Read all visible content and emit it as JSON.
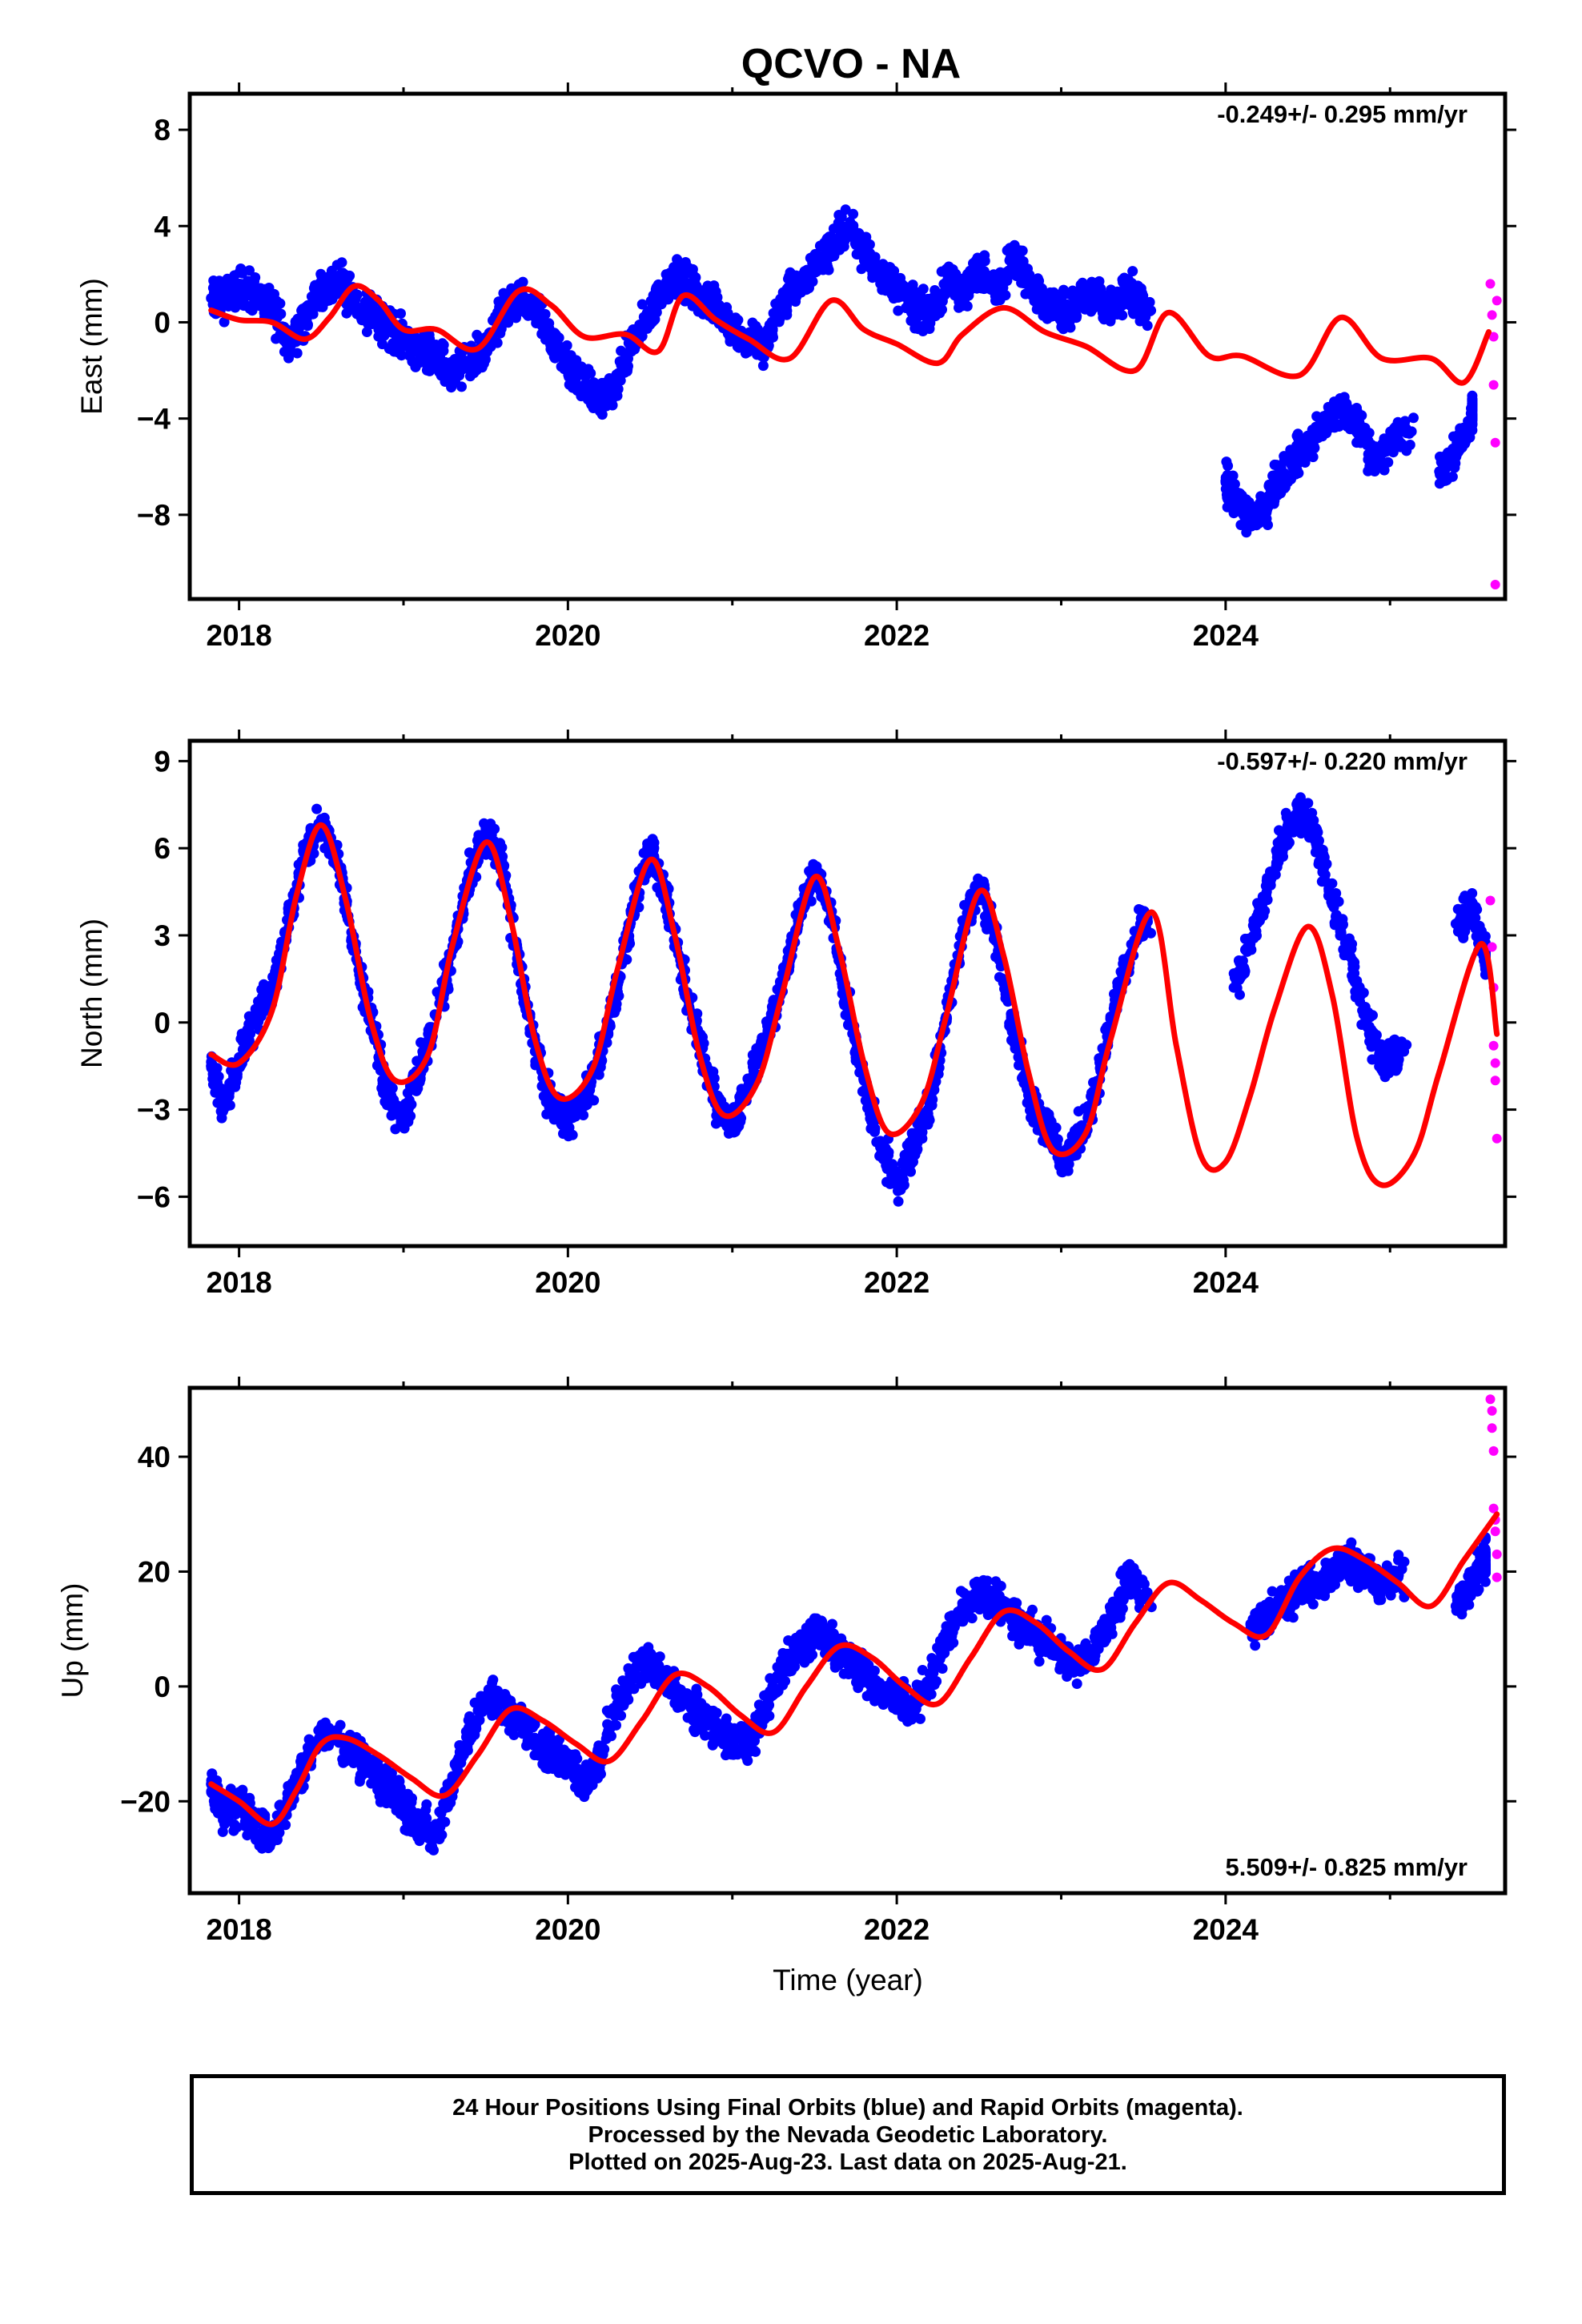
{
  "title": "QCVO - NA",
  "colors": {
    "final": "#0000ff",
    "rapid": "#ff00ff",
    "model": "#ff0000",
    "axis": "#000000"
  },
  "footer": {
    "line1": "24 Hour Positions Using Final Orbits (blue) and Rapid Orbits (magenta).",
    "line2": "Processed by the Nevada Geodetic Laboratory.",
    "line3": "Plotted on 2025-Aug-23. Last data on 2025-Aug-21."
  },
  "chart_data": [
    {
      "type": "scatter",
      "component": "east",
      "ylabel": "East (mm)",
      "xlabel": "",
      "rate_label": "-0.249+/- 0.295 mm/yr",
      "rate_position": "top-right",
      "xlim": [
        2017.7,
        2025.7
      ],
      "ylim": [
        -11.5,
        9.5
      ],
      "xticks": [
        2018,
        2020,
        2022,
        2024
      ],
      "xtick_labels": [
        "2018",
        "2020",
        "2022",
        "2024"
      ],
      "yticks": [
        8,
        4,
        0,
        -4,
        -8
      ],
      "ytick_labels": [
        "8",
        "4",
        "0",
        "−4",
        "−8"
      ],
      "grid": false,
      "model_curve": {
        "x": [
          2017.83,
          2018.0,
          2018.2,
          2018.4,
          2018.55,
          2018.7,
          2018.85,
          2019.0,
          2019.2,
          2019.45,
          2019.7,
          2019.9,
          2020.1,
          2020.35,
          2020.55,
          2020.7,
          2020.9,
          2021.1,
          2021.35,
          2021.6,
          2021.8,
          2022.0,
          2022.25,
          2022.4,
          2022.65,
          2022.9,
          2023.15,
          2023.45,
          2023.65,
          2023.9,
          2024.1,
          2024.45,
          2024.7,
          2024.95,
          2025.25,
          2025.45,
          2025.6
        ],
        "y": [
          0.5,
          0.1,
          0.0,
          -0.7,
          0.2,
          1.5,
          0.9,
          -0.3,
          -0.3,
          -1.1,
          1.3,
          0.7,
          -0.6,
          -0.5,
          -1.2,
          1.1,
          0.1,
          -0.7,
          -1.5,
          0.9,
          -0.3,
          -0.9,
          -1.7,
          -0.5,
          0.6,
          -0.4,
          -1.0,
          -2.0,
          0.4,
          -1.4,
          -1.4,
          -2.2,
          0.2,
          -1.5,
          -1.5,
          -2.5,
          -0.4
        ]
      },
      "final_orbits": {
        "x": [
          2017.83,
          2017.9,
          2018.0,
          2018.1,
          2018.2,
          2018.3,
          2018.4,
          2018.5,
          2018.6,
          2018.7,
          2018.8,
          2018.9,
          2019.0,
          2019.1,
          2019.2,
          2019.3,
          2019.4,
          2019.5,
          2019.6,
          2019.7,
          2019.8,
          2019.9,
          2020.0,
          2020.1,
          2020.2,
          2020.3,
          2020.4,
          2020.5,
          2020.6,
          2020.7,
          2020.8,
          2020.9,
          2021.0,
          2021.1,
          2021.2,
          2021.3,
          2021.4,
          2021.5,
          2021.6,
          2021.7,
          2021.8,
          2021.9,
          2022.0,
          2022.1,
          2022.2,
          2022.3,
          2022.4,
          2022.5,
          2022.6,
          2022.7,
          2022.8,
          2022.9,
          2023.0,
          2023.1,
          2023.2,
          2023.3,
          2023.4,
          2023.5,
          2024.0,
          2024.05,
          2024.15,
          2024.25,
          2024.3,
          2024.4,
          2024.5,
          2024.6,
          2024.7,
          2024.8,
          2024.9,
          2025.0,
          2025.1,
          2025.3,
          2025.4,
          2025.5
        ],
        "y": [
          1.0,
          0.8,
          1.6,
          1.2,
          0.6,
          -0.9,
          0.2,
          1.3,
          1.8,
          1.0,
          0.4,
          -0.2,
          -0.6,
          -1.2,
          -1.6,
          -1.9,
          -1.8,
          -1.2,
          0.3,
          0.9,
          0.6,
          -0.8,
          -1.8,
          -2.6,
          -3.3,
          -2.4,
          -0.8,
          0.3,
          1.7,
          1.8,
          1.0,
          0.8,
          -0.2,
          -0.8,
          -1.0,
          0.8,
          1.6,
          2.3,
          3.2,
          3.9,
          3.1,
          2.1,
          1.4,
          0.6,
          0.4,
          1.5,
          1.2,
          2.2,
          1.4,
          2.6,
          1.9,
          0.8,
          0.5,
          0.8,
          1.1,
          0.4,
          1.4,
          0.6,
          -6.6,
          -7.4,
          -8.2,
          -7.6,
          -6.8,
          -5.8,
          -5.0,
          -4.3,
          -3.6,
          -4.2,
          -5.7,
          -5.0,
          -4.6,
          -6.2,
          -5.6,
          -3.8
        ]
      },
      "rapid_orbits": {
        "x": [
          2025.61,
          2025.62,
          2025.63,
          2025.63,
          2025.64,
          2025.64,
          2025.65
        ],
        "y": [
          1.6,
          0.3,
          -0.6,
          -2.6,
          -5.0,
          -10.9,
          0.9
        ]
      }
    },
    {
      "type": "scatter",
      "component": "north",
      "ylabel": "North (mm)",
      "xlabel": "",
      "rate_label": "-0.597+/- 0.220 mm/yr",
      "rate_position": "top-right",
      "xlim": [
        2017.7,
        2025.7
      ],
      "ylim": [
        -7.7,
        9.7
      ],
      "xticks": [
        2018,
        2020,
        2022,
        2024
      ],
      "xtick_labels": [
        "2018",
        "2020",
        "2022",
        "2024"
      ],
      "yticks": [
        9,
        6,
        3,
        0,
        -3,
        -6
      ],
      "ytick_labels": [
        "9",
        "6",
        "3",
        "0",
        "−3",
        "−6"
      ],
      "grid": false,
      "model_curve": {
        "x": [
          2017.83,
          2018.0,
          2018.2,
          2018.35,
          2018.5,
          2018.65,
          2018.8,
          2018.95,
          2019.15,
          2019.3,
          2019.5,
          2019.65,
          2019.8,
          2019.95,
          2020.15,
          2020.3,
          2020.5,
          2020.65,
          2020.8,
          2020.95,
          2021.15,
          2021.3,
          2021.5,
          2021.65,
          2021.8,
          2021.95,
          2022.15,
          2022.3,
          2022.5,
          2022.65,
          2022.8,
          2022.95,
          2023.15,
          2023.3,
          2023.55,
          2023.7,
          2023.85,
          2024.0,
          2024.15,
          2024.3,
          2024.5,
          2024.65,
          2024.8,
          2024.95,
          2025.15,
          2025.3,
          2025.55,
          2025.65
        ],
        "y": [
          -1.1,
          -1.4,
          0.4,
          4.4,
          6.8,
          4.2,
          0.1,
          -2.0,
          -1.1,
          2.7,
          6.2,
          3.6,
          -0.6,
          -2.6,
          -1.6,
          1.8,
          5.6,
          3.0,
          -1.1,
          -3.2,
          -2.1,
          0.9,
          5.0,
          2.5,
          -1.4,
          -3.8,
          -2.8,
          0.2,
          4.5,
          2.3,
          -1.7,
          -4.4,
          -3.8,
          -0.6,
          3.8,
          -0.8,
          -4.6,
          -4.8,
          -2.5,
          0.5,
          3.3,
          0.9,
          -4.0,
          -5.6,
          -4.5,
          -1.7,
          2.7,
          -0.4
        ]
      },
      "final_orbits": {
        "x": [
          2017.83,
          2017.9,
          2018.0,
          2018.1,
          2018.2,
          2018.3,
          2018.4,
          2018.5,
          2018.6,
          2018.7,
          2018.8,
          2018.9,
          2019.0,
          2019.1,
          2019.2,
          2019.3,
          2019.4,
          2019.5,
          2019.6,
          2019.7,
          2019.8,
          2019.9,
          2020.0,
          2020.1,
          2020.2,
          2020.3,
          2020.4,
          2020.5,
          2020.6,
          2020.7,
          2020.8,
          2020.9,
          2021.0,
          2021.1,
          2021.2,
          2021.3,
          2021.4,
          2021.5,
          2021.6,
          2021.7,
          2021.8,
          2021.9,
          2022.0,
          2022.1,
          2022.2,
          2022.3,
          2022.4,
          2022.5,
          2022.6,
          2022.7,
          2022.8,
          2022.9,
          2023.0,
          2023.1,
          2023.2,
          2023.3,
          2023.4,
          2023.5,
          2024.05,
          2024.15,
          2024.25,
          2024.35,
          2024.45,
          2024.55,
          2024.65,
          2024.75,
          2024.85,
          2024.95,
          2025.05,
          2025.4,
          2025.5,
          2025.58
        ],
        "y": [
          -1.5,
          -2.8,
          -1.2,
          0.0,
          1.0,
          3.5,
          5.8,
          6.8,
          5.5,
          2.6,
          0.2,
          -2.4,
          -3.5,
          -1.6,
          0.2,
          2.5,
          5.0,
          6.6,
          5.4,
          2.0,
          -1.0,
          -2.8,
          -3.4,
          -2.6,
          -1.2,
          1.2,
          4.0,
          5.9,
          4.3,
          1.6,
          -0.8,
          -2.8,
          -3.5,
          -2.2,
          -0.6,
          1.4,
          3.5,
          5.2,
          3.8,
          0.5,
          -2.0,
          -4.3,
          -5.6,
          -4.3,
          -2.8,
          0.2,
          3.2,
          4.8,
          3.0,
          0.0,
          -2.5,
          -3.6,
          -4.6,
          -4.0,
          -2.6,
          0.2,
          2.0,
          3.6,
          1.2,
          2.7,
          4.5,
          6.2,
          7.3,
          6.4,
          4.1,
          2.3,
          0.2,
          -1.3,
          -1.0,
          3.4,
          3.9,
          2.2
        ]
      },
      "rapid_orbits": {
        "x": [
          2025.61,
          2025.62,
          2025.63,
          2025.63,
          2025.64,
          2025.64,
          2025.65
        ],
        "y": [
          4.2,
          2.6,
          1.2,
          -0.8,
          -2.0,
          -1.4,
          -4.0
        ]
      }
    },
    {
      "type": "scatter",
      "component": "up",
      "ylabel": "Up (mm)",
      "xlabel": "Time (year)",
      "rate_label": "5.509+/- 0.825 mm/yr",
      "rate_position": "bottom-right",
      "xlim": [
        2017.7,
        2025.7
      ],
      "ylim": [
        -36,
        52
      ],
      "xticks": [
        2018,
        2020,
        2022,
        2024
      ],
      "xtick_labels": [
        "2018",
        "2020",
        "2022",
        "2024"
      ],
      "yticks": [
        40,
        20,
        0,
        -20
      ],
      "ytick_labels": [
        "40",
        "20",
        "0",
        "−20"
      ],
      "grid": false,
      "model_curve": {
        "x": [
          2017.83,
          2018.0,
          2018.2,
          2018.35,
          2018.5,
          2018.65,
          2018.85,
          2019.05,
          2019.25,
          2019.45,
          2019.65,
          2019.85,
          2020.05,
          2020.25,
          2020.45,
          2020.65,
          2020.85,
          2021.05,
          2021.25,
          2021.45,
          2021.65,
          2021.85,
          2022.05,
          2022.25,
          2022.45,
          2022.65,
          2022.85,
          2023.05,
          2023.25,
          2023.45,
          2023.65,
          2023.85,
          2024.05,
          2024.25,
          2024.45,
          2024.65,
          2024.85,
          2025.05,
          2025.25,
          2025.45,
          2025.65
        ],
        "y": [
          -17,
          -20,
          -24,
          -18,
          -10,
          -9,
          -12,
          -16,
          -19,
          -12,
          -4,
          -6,
          -10,
          -13,
          -6,
          2,
          0,
          -5,
          -8,
          0,
          7,
          5,
          0,
          -3,
          5,
          13,
          11,
          6,
          3,
          11,
          18,
          15,
          11,
          9,
          19,
          24,
          22,
          18,
          14,
          22,
          30
        ]
      },
      "final_orbits": {
        "x": [
          2017.83,
          2017.9,
          2018.0,
          2018.1,
          2018.2,
          2018.3,
          2018.4,
          2018.5,
          2018.6,
          2018.7,
          2018.8,
          2018.9,
          2019.0,
          2019.1,
          2019.2,
          2019.3,
          2019.4,
          2019.5,
          2019.6,
          2019.7,
          2019.8,
          2019.9,
          2020.0,
          2020.1,
          2020.2,
          2020.3,
          2020.4,
          2020.5,
          2020.6,
          2020.7,
          2020.8,
          2020.9,
          2021.0,
          2021.1,
          2021.2,
          2021.3,
          2021.4,
          2021.5,
          2021.6,
          2021.7,
          2021.8,
          2021.9,
          2022.0,
          2022.1,
          2022.2,
          2022.3,
          2022.4,
          2022.5,
          2022.6,
          2022.7,
          2022.8,
          2022.9,
          2023.0,
          2023.1,
          2023.2,
          2023.3,
          2023.4,
          2023.5,
          2024.15,
          2024.25,
          2024.35,
          2024.45,
          2024.55,
          2024.65,
          2024.75,
          2024.85,
          2024.95,
          2025.05,
          2025.4,
          2025.5,
          2025.58
        ],
        "y": [
          -17,
          -22,
          -21,
          -24,
          -26,
          -20,
          -14,
          -8,
          -9,
          -11,
          -14,
          -18,
          -21,
          -24,
          -26,
          -16,
          -8,
          -2,
          -3,
          -6,
          -9,
          -11,
          -14,
          -17,
          -12,
          -3,
          2,
          4,
          1,
          -2,
          -5,
          -7,
          -9,
          -10,
          -4,
          3,
          7,
          9,
          8,
          5,
          2,
          -1,
          -2,
          -4,
          1,
          8,
          14,
          16,
          15,
          12,
          10,
          8,
          6,
          4,
          6,
          12,
          18,
          16,
          10,
          12,
          15,
          17,
          18,
          20,
          22,
          20,
          17,
          19,
          14,
          18,
          22
        ]
      },
      "rapid_orbits": {
        "x": [
          2025.61,
          2025.62,
          2025.62,
          2025.63,
          2025.63,
          2025.64,
          2025.64,
          2025.65,
          2025.65
        ],
        "y": [
          50,
          48,
          45,
          41,
          31,
          29,
          27,
          23,
          19
        ]
      }
    }
  ]
}
